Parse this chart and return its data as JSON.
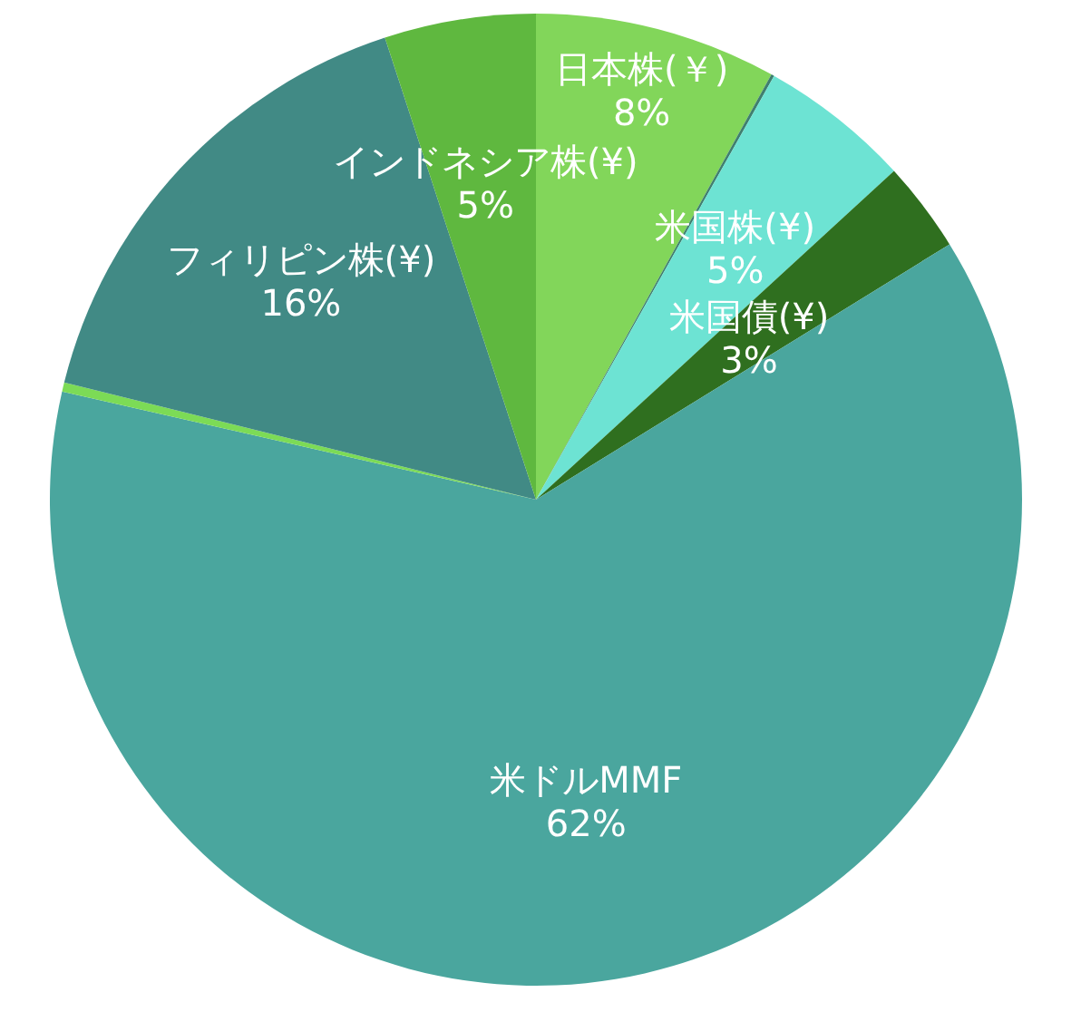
{
  "chart_data": {
    "type": "pie",
    "categories": [
      "日本株(￥)",
      null,
      "米国株(¥)",
      "米国債(¥)",
      "米ドルMMF",
      null,
      "フィリピン株(¥)",
      "インドネシア株(¥)"
    ],
    "values": [
      8,
      0.1,
      5,
      3,
      62,
      0.3,
      16,
      5
    ],
    "value_labels": [
      "8%",
      null,
      "5%",
      "3%",
      "62%",
      null,
      "16%",
      "5%"
    ],
    "colors": [
      "#82d65a",
      "#3f7f6f",
      "#6de3d3",
      "#2f6f1f",
      "#4aa69e",
      "#7cdb56",
      "#418a85",
      "#5fb83f"
    ]
  }
}
